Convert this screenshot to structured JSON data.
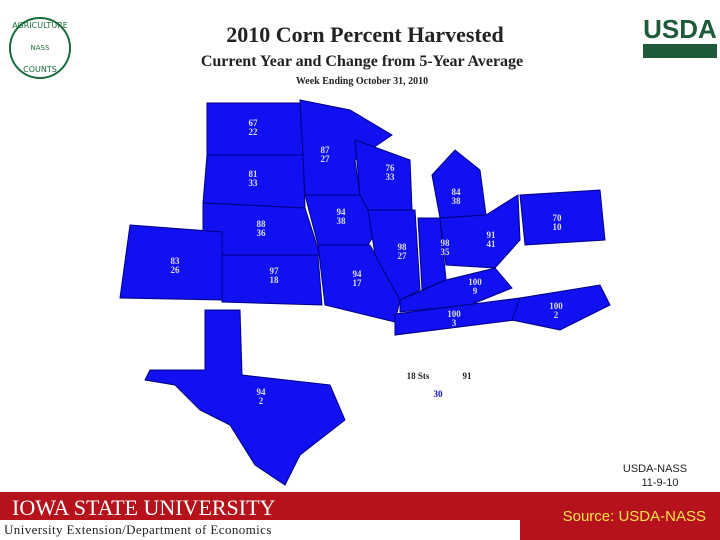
{
  "header": {
    "title": "2010 Corn Percent Harvested",
    "subtitle": "Current Year and Change from 5-Year Average",
    "week": "Week Ending October 31, 2010"
  },
  "logos": {
    "left_top": "AGRICULTURE",
    "left_bottom": "COUNTS",
    "left_center": "NASS",
    "right": "USDA"
  },
  "states": [
    {
      "current": 67,
      "change": 22
    },
    {
      "current": 87,
      "change": 27
    },
    {
      "current": 81,
      "change": 33
    },
    {
      "current": 76,
      "change": 33
    },
    {
      "current": 84,
      "change": 38
    },
    {
      "current": 94,
      "change": 38
    },
    {
      "current": 88,
      "change": 36
    },
    {
      "current": 70,
      "change": 10
    },
    {
      "current": 91,
      "change": 41
    },
    {
      "current": 98,
      "change": 35
    },
    {
      "current": 98,
      "change": 27
    },
    {
      "current": 83,
      "change": 26
    },
    {
      "current": 97,
      "change": 18
    },
    {
      "current": 94,
      "change": 17
    },
    {
      "current": 100,
      "change": 9
    },
    {
      "current": 100,
      "change": 2
    },
    {
      "current": 100,
      "change": 3
    },
    {
      "current": 94,
      "change": 2
    }
  ],
  "summary": {
    "label": "18 Sts",
    "current": 91,
    "change": 30
  },
  "stamp": {
    "source": "USDA-NASS",
    "date": "11-9-10"
  },
  "footer": {
    "university": "IOWA STATE UNIVERSITY",
    "department": "University Extension/Department of Economics",
    "source": "Source: USDA-NASS"
  }
}
